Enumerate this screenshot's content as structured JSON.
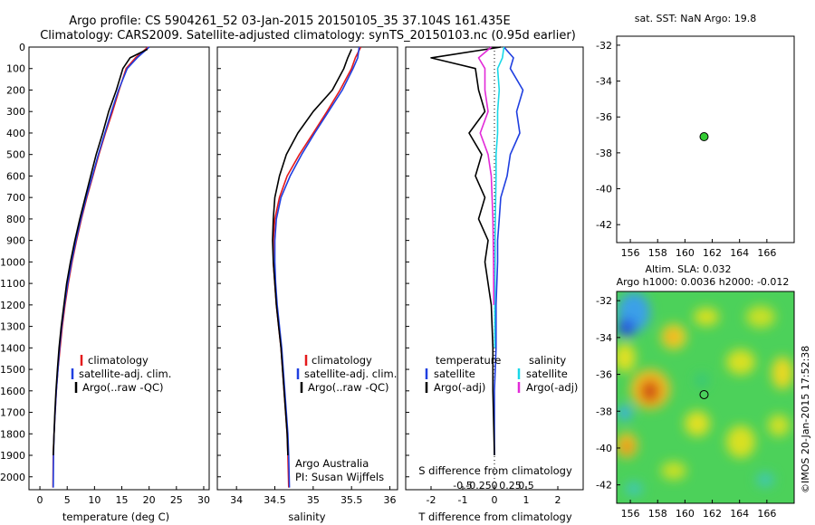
{
  "title": {
    "line1": "Argo profile: CS 5904261_52 03-Jan-2015 20150105_35 37.104S 161.435E",
    "line2": "Climatology: CARS2009. Satellite-adjusted climatology: synTS_20150103.nc (0.95d earlier)"
  },
  "colors": {
    "climatology": "#e41a1c",
    "satellite": "#1f3fe0",
    "argo": "#000000",
    "salinity_satellite": "#19d8e8",
    "salinity_argo": "#e22ad8",
    "float_marker": "#33cc33"
  },
  "chart_data": [
    {
      "type": "line",
      "name": "temperature-profile",
      "xlabel": "temperature (deg C)",
      "ylabel": "",
      "xlim": [
        -2,
        31
      ],
      "ylim": [
        2060,
        0
      ],
      "xticks": [
        "0",
        "5",
        "10",
        "15",
        "20",
        "25",
        "30"
      ],
      "yticks": [
        "0",
        "100",
        "200",
        "300",
        "400",
        "500",
        "600",
        "700",
        "800",
        "900",
        "1000",
        "1100",
        "1200",
        "1300",
        "1400",
        "1500",
        "1600",
        "1700",
        "1800",
        "1900",
        "2000"
      ],
      "legend": [
        "climatology",
        "satellite-adj. clim.",
        "Argo(..raw -QC)"
      ],
      "series": [
        {
          "name": "climatology",
          "color_key": "climatology",
          "x": [
            19.8,
            17.5,
            15.8,
            14.5,
            13.3,
            12.0,
            10.8,
            9.7,
            8.6,
            7.6,
            6.7,
            5.9,
            5.2,
            4.6,
            4.1,
            3.7,
            3.3,
            3.0,
            2.8,
            2.6,
            2.45,
            2.4
          ],
          "y": [
            0,
            50,
            100,
            200,
            300,
            400,
            500,
            600,
            700,
            800,
            900,
            1000,
            1100,
            1200,
            1300,
            1400,
            1500,
            1600,
            1700,
            1800,
            1900,
            2050
          ]
        },
        {
          "name": "satellite-adj. clim.",
          "color_key": "satellite",
          "x": [
            20.0,
            17.8,
            16.0,
            14.4,
            13.1,
            11.9,
            10.7,
            9.6,
            8.5,
            7.5,
            6.6,
            5.8,
            5.1,
            4.5,
            4.0,
            3.6,
            3.3,
            3.0,
            2.8,
            2.6,
            2.5,
            2.45
          ],
          "y": [
            0,
            50,
            100,
            200,
            300,
            400,
            500,
            600,
            700,
            800,
            900,
            1000,
            1100,
            1200,
            1300,
            1400,
            1500,
            1600,
            1700,
            1800,
            1900,
            2050
          ]
        },
        {
          "name": "Argo(..raw -QC)",
          "color_key": "argo",
          "x": [
            19.7,
            16.5,
            15.2,
            14.0,
            12.6,
            11.5,
            10.3,
            9.3,
            8.3,
            7.3,
            6.4,
            5.6,
            4.9,
            4.4,
            3.9,
            3.5,
            3.2,
            2.95,
            2.75,
            2.6,
            2.45
          ],
          "y": [
            10,
            50,
            100,
            200,
            300,
            400,
            500,
            600,
            700,
            800,
            900,
            1000,
            1100,
            1200,
            1300,
            1400,
            1500,
            1600,
            1700,
            1800,
            1900
          ]
        }
      ]
    },
    {
      "type": "line",
      "name": "salinity-profile",
      "xlabel": "salinity",
      "ylabel": "",
      "xlim": [
        33.75,
        36.1
      ],
      "ylim": [
        2060,
        0
      ],
      "xticks": [
        "34",
        "34.5",
        "35",
        "35.5",
        "36"
      ],
      "legend": [
        "climatology",
        "satellite-adj. clim.",
        "Argo(..raw -QC)"
      ],
      "annotation": [
        "Argo Australia",
        "PI: Susan Wijffels"
      ],
      "series": [
        {
          "name": "climatology",
          "color_key": "climatology",
          "x": [
            35.62,
            35.55,
            35.5,
            35.35,
            35.18,
            35.0,
            34.82,
            34.66,
            34.56,
            34.5,
            34.48,
            34.48,
            34.5,
            34.52,
            34.55,
            34.58,
            34.6,
            34.62,
            34.64,
            34.66,
            34.67,
            34.68
          ],
          "y": [
            0,
            50,
            100,
            200,
            300,
            400,
            500,
            600,
            700,
            800,
            900,
            1000,
            1100,
            1200,
            1300,
            1400,
            1500,
            1600,
            1700,
            1800,
            1900,
            2050
          ]
        },
        {
          "name": "satellite-adj. clim.",
          "color_key": "satellite",
          "x": [
            35.6,
            35.58,
            35.52,
            35.38,
            35.2,
            35.02,
            34.85,
            34.7,
            34.58,
            34.52,
            34.5,
            34.5,
            34.51,
            34.53,
            34.56,
            34.59,
            34.61,
            34.63,
            34.65,
            34.67,
            34.68,
            34.69
          ],
          "y": [
            0,
            50,
            100,
            200,
            300,
            400,
            500,
            600,
            700,
            800,
            900,
            1000,
            1100,
            1200,
            1300,
            1400,
            1500,
            1600,
            1700,
            1800,
            1900,
            2050
          ]
        },
        {
          "name": "Argo(..raw -QC)",
          "color_key": "argo",
          "x": [
            35.5,
            35.45,
            35.4,
            35.25,
            35.0,
            34.8,
            34.65,
            34.56,
            34.5,
            34.48,
            34.47,
            34.48,
            34.5,
            34.52,
            34.55,
            34.58,
            34.6,
            34.62,
            34.64,
            34.66,
            34.67
          ],
          "y": [
            10,
            50,
            100,
            200,
            300,
            400,
            500,
            600,
            700,
            800,
            900,
            1000,
            1100,
            1200,
            1300,
            1400,
            1500,
            1600,
            1700,
            1800,
            1900
          ]
        }
      ]
    },
    {
      "type": "line",
      "name": "difference-profile",
      "xlabel": "T difference from climatology",
      "xlabel_top": "S difference from climatology",
      "xlim": [
        -2.8,
        2.8
      ],
      "ylim": [
        2060,
        0
      ],
      "xticks": [
        "-2",
        "-1",
        "0",
        "1",
        "2"
      ],
      "xticks_salinity": [
        "-0.5",
        "-0.25",
        "0",
        "0.25",
        "0.5"
      ],
      "legend_temperature_title": "temperature",
      "legend_salinity_title": "salinity",
      "legend_temperature": [
        "satellite",
        "Argo(-adj)"
      ],
      "legend_salinity": [
        "satellite",
        "Argo(-adj)"
      ],
      "series": [
        {
          "name": "temperature satellite",
          "color_key": "satellite",
          "x": [
            0.3,
            0.6,
            0.5,
            0.9,
            0.7,
            0.8,
            0.5,
            0.4,
            0.2,
            0.15,
            0.1,
            0.1,
            0.05,
            0.05,
            0.0,
            0.0
          ],
          "y": [
            0,
            50,
            100,
            200,
            300,
            400,
            500,
            600,
            700,
            800,
            900,
            1000,
            1200,
            1400,
            1600,
            1900
          ]
        },
        {
          "name": "temperature Argo(-adj)",
          "color_key": "argo",
          "x": [
            0.2,
            -2.0,
            -0.6,
            -0.5,
            -0.3,
            -0.8,
            -0.4,
            -0.6,
            -0.3,
            -0.5,
            -0.2,
            -0.3,
            -0.1,
            -0.05,
            -0.05,
            0.0
          ],
          "y": [
            0,
            50,
            100,
            200,
            300,
            400,
            500,
            600,
            700,
            800,
            900,
            1000,
            1200,
            1400,
            1600,
            1900
          ]
        },
        {
          "name": "salinity satellite",
          "color_key": "salinity_satellite",
          "x": [
            0.3,
            0.25,
            0.1,
            0.15,
            0.1,
            0.1,
            0.05,
            0.05,
            0.04,
            0.03,
            0.02,
            0.02,
            0.01,
            0.01
          ],
          "y": [
            0,
            50,
            100,
            200,
            300,
            400,
            500,
            600,
            700,
            800,
            900,
            1000,
            1200,
            1400
          ]
        },
        {
          "name": "salinity Argo(-adj)",
          "color_key": "salinity_argo",
          "x": [
            -0.1,
            -0.5,
            -0.3,
            -0.3,
            -0.2,
            -0.45,
            -0.2,
            -0.1,
            -0.05,
            -0.03,
            -0.02
          ],
          "y": [
            0,
            50,
            100,
            200,
            300,
            400,
            500,
            600,
            800,
            1000,
            1200
          ]
        }
      ]
    },
    {
      "type": "scatter",
      "name": "sst-map",
      "title": "sat. SST: NaN Argo: 19.8",
      "xlim": [
        155,
        168
      ],
      "ylim": [
        -43,
        -31.5
      ],
      "xticks": [
        "156",
        "158",
        "160",
        "162",
        "164",
        "166"
      ],
      "yticks": [
        "-32",
        "-34",
        "-36",
        "-38",
        "-40",
        "-42"
      ],
      "points": [
        {
          "x": 161.4,
          "y": -37.1
        }
      ]
    },
    {
      "type": "heatmap",
      "name": "sla-map",
      "title_line1": "Altim. SLA: 0.032",
      "title_line2": "Argo h1000: 0.0036 h2000: -0.012",
      "xlim": [
        155,
        168
      ],
      "ylim": [
        -43,
        -31.5
      ],
      "xticks": [
        "156",
        "158",
        "160",
        "162",
        "164",
        "166"
      ],
      "yticks": [
        "-32",
        "-34",
        "-36",
        "-38",
        "-40",
        "-42"
      ],
      "points": [
        {
          "x": 161.4,
          "y": -37.1
        }
      ]
    }
  ],
  "credit": "©IMOS 20-Jan-2015 17:52:38"
}
